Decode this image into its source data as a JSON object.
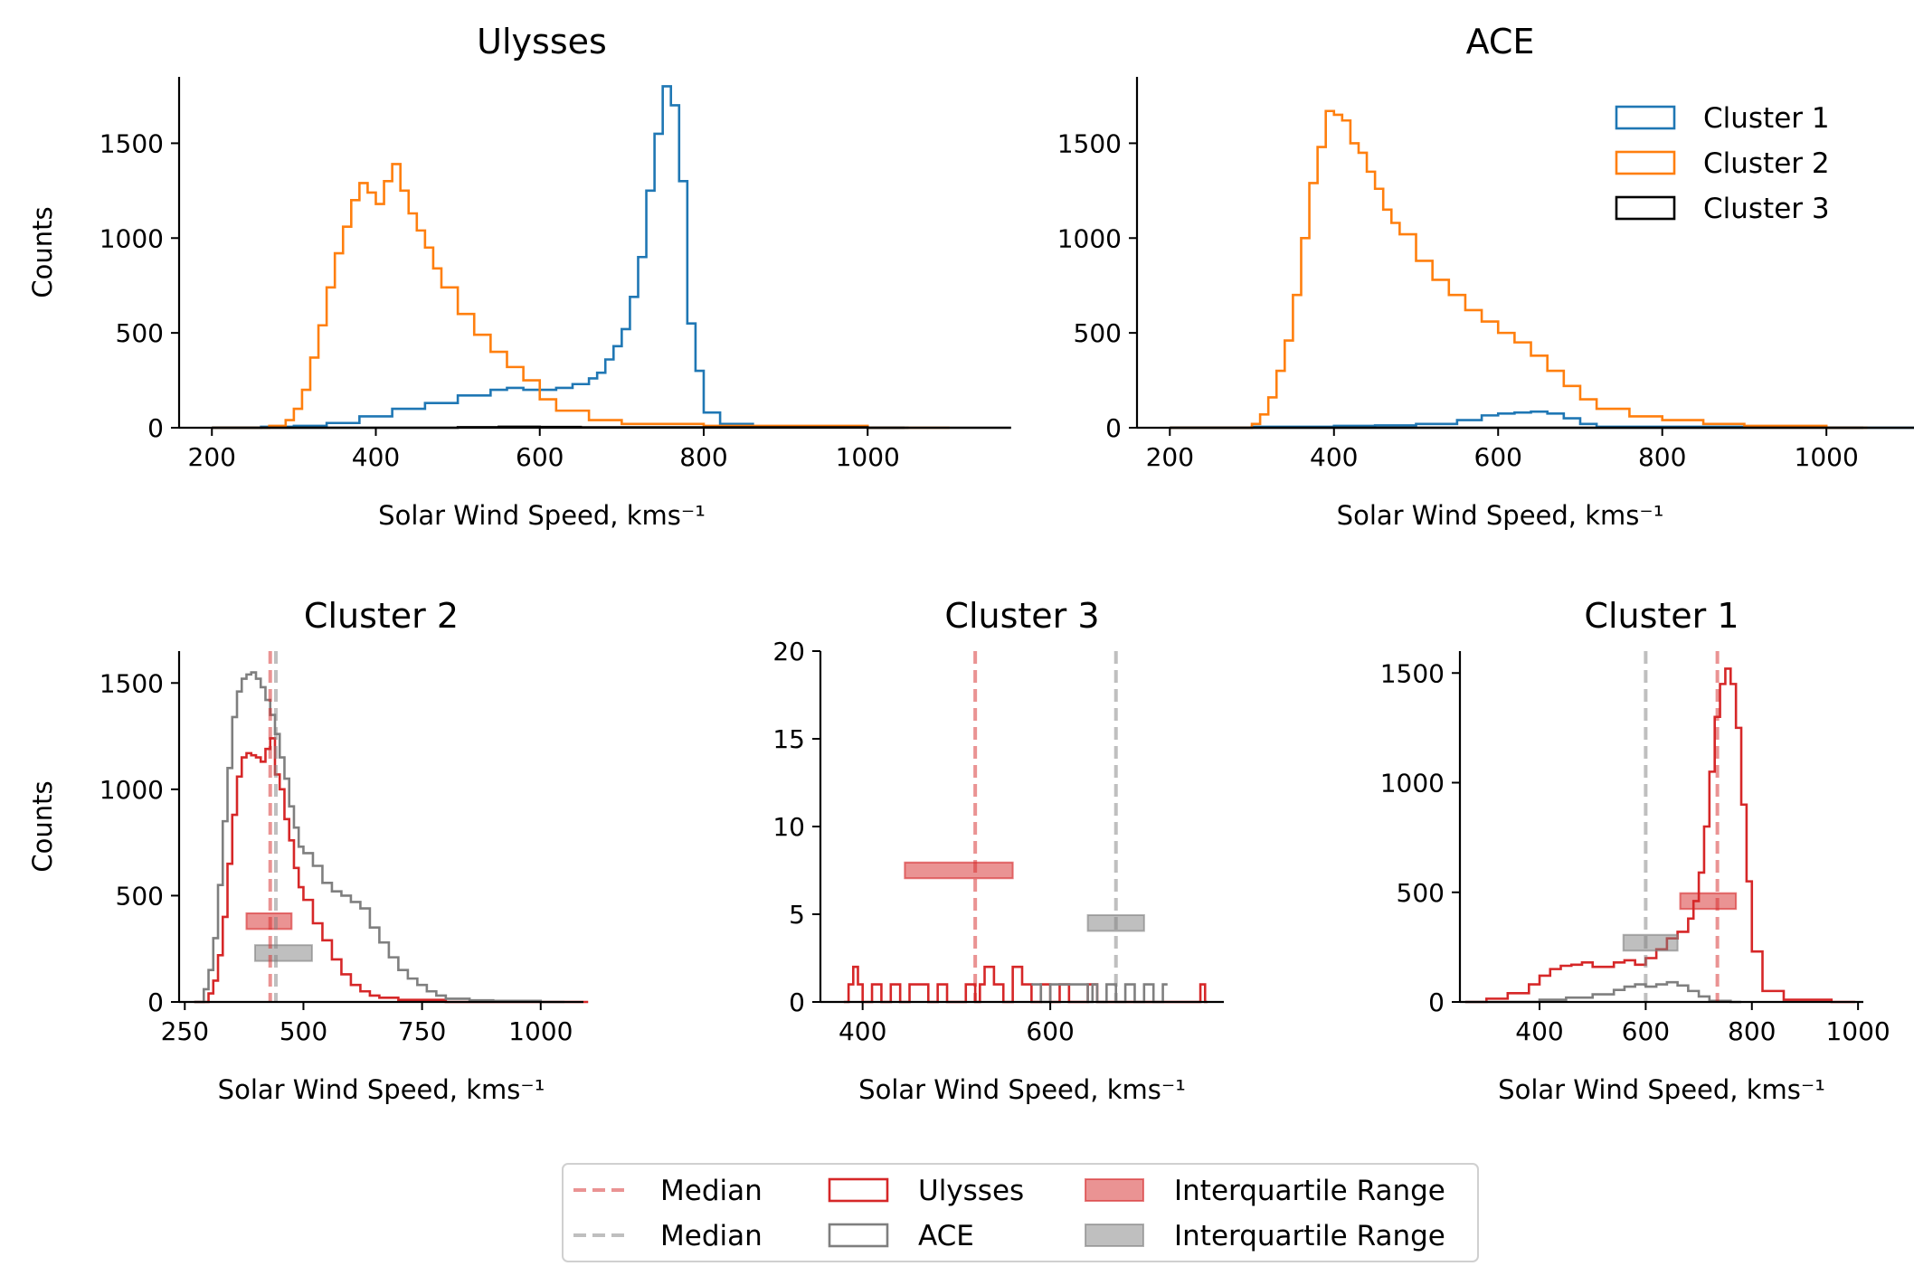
{
  "colors": {
    "cluster1": "#1f77b4",
    "cluster2": "#ff7f0e",
    "cluster3": "#000000",
    "ulysses": "#d62728",
    "ace": "#7f7f7f"
  },
  "chart_data": [
    {
      "type": "line",
      "step": true,
      "title": "Ulysses",
      "xlabel": "Solar Wind Speed, kms⁻¹",
      "ylabel": "Counts",
      "xlim": [
        160,
        1045
      ],
      "ylim": [
        0,
        1850
      ],
      "xticks": [
        "200",
        "400",
        "600",
        "800",
        "1000"
      ],
      "yticks": [
        "0",
        "500",
        "1000",
        "1500"
      ],
      "legend": null,
      "series": [
        {
          "name": "Cluster 1",
          "color": "#1f77b4",
          "x": [
            200,
            260,
            300,
            340,
            380,
            420,
            460,
            500,
            540,
            560,
            580,
            600,
            620,
            640,
            660,
            670,
            680,
            690,
            700,
            710,
            720,
            730,
            740,
            750,
            760,
            770,
            780,
            790,
            800,
            820,
            860,
            900,
            1000
          ],
          "y": [
            0,
            5,
            10,
            25,
            60,
            100,
            130,
            170,
            200,
            210,
            200,
            200,
            210,
            230,
            260,
            290,
            360,
            430,
            520,
            690,
            900,
            1250,
            1550,
            1800,
            1700,
            1300,
            550,
            300,
            80,
            20,
            5,
            2,
            0
          ]
        },
        {
          "name": "Cluster 2",
          "color": "#ff7f0e",
          "x": [
            200,
            270,
            290,
            300,
            310,
            320,
            330,
            340,
            350,
            360,
            370,
            380,
            390,
            400,
            410,
            420,
            430,
            440,
            450,
            460,
            470,
            480,
            500,
            520,
            540,
            560,
            580,
            600,
            620,
            660,
            700,
            800,
            1000
          ],
          "y": [
            0,
            10,
            40,
            100,
            200,
            370,
            540,
            740,
            920,
            1060,
            1200,
            1290,
            1240,
            1180,
            1300,
            1390,
            1250,
            1130,
            1040,
            950,
            840,
            740,
            600,
            490,
            400,
            320,
            250,
            150,
            90,
            40,
            20,
            10,
            0
          ]
        },
        {
          "name": "Cluster 3",
          "color": "#000000",
          "x": [
            200,
            450,
            500,
            550,
            600,
            650,
            1000
          ],
          "y": [
            0,
            0,
            3,
            5,
            4,
            2,
            0
          ]
        }
      ]
    },
    {
      "type": "line",
      "step": true,
      "title": "ACE",
      "xlabel": "Solar Wind Speed, kms⁻¹",
      "ylabel": "",
      "xlim": [
        160,
        1045
      ],
      "ylim": [
        0,
        1850
      ],
      "xticks": [
        "200",
        "400",
        "600",
        "800",
        "1000"
      ],
      "yticks": [
        "0",
        "500",
        "1000",
        "1500"
      ],
      "legend": {
        "position": "top-right",
        "entries": [
          "Cluster 1",
          "Cluster 2",
          "Cluster 3"
        ]
      },
      "series": [
        {
          "name": "Cluster 1",
          "color": "#1f77b4",
          "x": [
            200,
            300,
            400,
            450,
            500,
            550,
            580,
            600,
            620,
            640,
            660,
            680,
            700,
            720,
            1000
          ],
          "y": [
            0,
            5,
            10,
            12,
            20,
            40,
            65,
            75,
            80,
            85,
            75,
            50,
            20,
            5,
            0
          ]
        },
        {
          "name": "Cluster 2",
          "color": "#ff7f0e",
          "x": [
            200,
            300,
            310,
            320,
            330,
            340,
            350,
            360,
            370,
            380,
            390,
            400,
            410,
            420,
            430,
            440,
            450,
            460,
            470,
            480,
            500,
            520,
            540,
            560,
            580,
            600,
            620,
            640,
            660,
            680,
            700,
            720,
            760,
            800,
            850,
            900,
            1000
          ],
          "y": [
            0,
            20,
            70,
            160,
            300,
            460,
            700,
            1000,
            1290,
            1480,
            1670,
            1650,
            1620,
            1500,
            1450,
            1350,
            1260,
            1150,
            1080,
            1020,
            880,
            780,
            700,
            620,
            560,
            500,
            450,
            380,
            300,
            220,
            150,
            100,
            60,
            40,
            20,
            10,
            0
          ]
        },
        {
          "name": "Cluster 3",
          "color": "#000000",
          "x": [
            200,
            1000
          ],
          "y": [
            0,
            0
          ]
        }
      ]
    },
    {
      "type": "line",
      "step": true,
      "title": "Cluster 2",
      "xlabel": "Solar Wind Speed, kms⁻¹",
      "ylabel": "Counts",
      "xlim": [
        238,
        1090
      ],
      "ylim": [
        0,
        1650
      ],
      "xticks": [
        "250",
        "500",
        "750",
        "1000"
      ],
      "yticks": [
        "0",
        "500",
        "1000",
        "1500"
      ],
      "series": [
        {
          "name": "Ulysses",
          "color": "#d62728",
          "x": [
            270,
            300,
            310,
            320,
            330,
            340,
            350,
            360,
            370,
            380,
            390,
            400,
            410,
            420,
            430,
            440,
            450,
            460,
            470,
            480,
            490,
            500,
            520,
            540,
            560,
            580,
            600,
            620,
            640,
            660,
            700,
            800,
            1000
          ],
          "y": [
            0,
            40,
            100,
            220,
            400,
            650,
            880,
            1060,
            1150,
            1170,
            1160,
            1150,
            1130,
            1190,
            1240,
            1070,
            1000,
            860,
            760,
            630,
            540,
            480,
            370,
            290,
            200,
            130,
            80,
            50,
            30,
            20,
            10,
            0,
            0
          ]
        },
        {
          "name": "ACE",
          "color": "#7f7f7f",
          "x": [
            270,
            290,
            300,
            310,
            320,
            330,
            340,
            350,
            360,
            370,
            380,
            390,
            400,
            410,
            420,
            430,
            440,
            450,
            460,
            470,
            480,
            490,
            500,
            520,
            540,
            560,
            580,
            600,
            620,
            640,
            660,
            680,
            700,
            720,
            740,
            760,
            780,
            800,
            850,
            900,
            1000
          ],
          "y": [
            0,
            60,
            150,
            300,
            550,
            850,
            1100,
            1340,
            1460,
            1520,
            1540,
            1550,
            1520,
            1480,
            1420,
            1350,
            1260,
            1150,
            1050,
            920,
            820,
            730,
            700,
            640,
            560,
            520,
            500,
            470,
            440,
            350,
            280,
            210,
            150,
            110,
            80,
            50,
            30,
            15,
            8,
            5,
            0
          ]
        }
      ],
      "medians": [
        {
          "value": 430,
          "color": "#d62728"
        },
        {
          "value": 442,
          "color": "#7f7f7f"
        }
      ],
      "iqr": [
        {
          "low": 380,
          "high": 475,
          "y": 380,
          "color": "#d62728"
        },
        {
          "low": 398,
          "high": 518,
          "y": 230,
          "color": "#7f7f7f"
        }
      ]
    },
    {
      "type": "line",
      "step": true,
      "title": "Cluster 3",
      "xlabel": "Solar Wind Speed, kms⁻¹",
      "ylabel": "",
      "xlim": [
        355,
        785
      ],
      "ylim": [
        0,
        20
      ],
      "xticks": [
        "400",
        "600"
      ],
      "yticks": [
        "0",
        "5",
        "10",
        "15",
        "20"
      ],
      "series": [
        {
          "name": "Ulysses",
          "color": "#d62728",
          "x": [
            380,
            385,
            390,
            395,
            400,
            410,
            420,
            430,
            440,
            450,
            460,
            470,
            480,
            490,
            500,
            510,
            520,
            525,
            530,
            540,
            550,
            560,
            570,
            580,
            590,
            600,
            610,
            620,
            630,
            640,
            650,
            660,
            760,
            765
          ],
          "y": [
            0,
            1,
            2,
            1,
            0,
            1,
            0,
            1,
            0,
            1,
            1,
            0,
            1,
            0,
            0,
            1,
            0,
            1,
            2,
            1,
            0,
            2,
            1,
            0,
            1,
            0,
            1,
            0,
            0,
            1,
            0,
            0,
            1,
            0
          ]
        },
        {
          "name": "ACE",
          "color": "#7f7f7f",
          "x": [
            580,
            590,
            600,
            640,
            645,
            650,
            660,
            670,
            680,
            690,
            700,
            710,
            720
          ],
          "y": [
            1,
            0,
            1,
            0,
            1,
            0,
            1,
            0,
            1,
            0,
            1,
            0,
            1
          ]
        }
      ],
      "medians": [
        {
          "value": 520,
          "color": "#d62728"
        },
        {
          "value": 670,
          "color": "#7f7f7f"
        }
      ],
      "iqr": [
        {
          "low": 445,
          "high": 560,
          "y": 7.5,
          "color": "#d62728"
        },
        {
          "low": 640,
          "high": 700,
          "y": 4.5,
          "color": "#7f7f7f"
        }
      ]
    },
    {
      "type": "line",
      "step": true,
      "title": "Cluster 1",
      "xlabel": "Solar Wind Speed, kms⁻¹",
      "ylabel": "",
      "xlim": [
        250,
        1010
      ],
      "ylim": [
        0,
        1600
      ],
      "xticks": [
        "400",
        "600",
        "800",
        "1000"
      ],
      "yticks": [
        "0",
        "500",
        "1000",
        "1500"
      ],
      "series": [
        {
          "name": "Ulysses",
          "color": "#d62728",
          "x": [
            260,
            300,
            340,
            380,
            400,
            420,
            440,
            460,
            480,
            500,
            520,
            540,
            560,
            580,
            600,
            620,
            640,
            660,
            680,
            690,
            700,
            710,
            720,
            730,
            740,
            750,
            760,
            770,
            780,
            790,
            800,
            820,
            860,
            950
          ],
          "y": [
            0,
            15,
            40,
            80,
            120,
            150,
            165,
            170,
            180,
            160,
            160,
            180,
            190,
            170,
            200,
            240,
            290,
            320,
            380,
            460,
            590,
            800,
            1050,
            1300,
            1450,
            1520,
            1450,
            1250,
            900,
            550,
            230,
            50,
            10,
            0
          ]
        },
        {
          "name": "ACE",
          "color": "#7f7f7f",
          "x": [
            260,
            400,
            450,
            500,
            540,
            560,
            580,
            600,
            620,
            640,
            660,
            680,
            700,
            720,
            760
          ],
          "y": [
            0,
            10,
            20,
            35,
            55,
            70,
            80,
            70,
            80,
            90,
            75,
            50,
            25,
            5,
            0
          ]
        }
      ],
      "medians": [
        {
          "value": 735,
          "color": "#d62728"
        },
        {
          "value": 600,
          "color": "#7f7f7f"
        }
      ],
      "iqr": [
        {
          "low": 665,
          "high": 770,
          "y": 460,
          "color": "#d62728"
        },
        {
          "low": 558,
          "high": 660,
          "y": 270,
          "color": "#7f7f7f"
        }
      ]
    }
  ],
  "bottom_legend": {
    "entries": [
      {
        "kind": "median",
        "label": "Median",
        "color": "#d62728"
      },
      {
        "kind": "median",
        "label": "Median",
        "color": "#7f7f7f"
      },
      {
        "kind": "hist",
        "label": "Ulysses",
        "color": "#d62728"
      },
      {
        "kind": "hist",
        "label": "ACE",
        "color": "#7f7f7f"
      },
      {
        "kind": "iqr",
        "label": "Interquartile Range",
        "color": "#d62728"
      },
      {
        "kind": "iqr",
        "label": "Interquartile Range",
        "color": "#7f7f7f"
      }
    ]
  }
}
